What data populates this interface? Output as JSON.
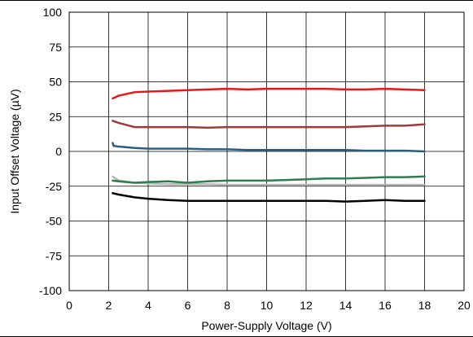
{
  "chart_data": {
    "type": "line",
    "title": "",
    "xlabel": "Power-Supply Voltage (V)",
    "ylabel": "Input Offset Voltage (µV)",
    "xlim": [
      0,
      20
    ],
    "ylim": [
      -100,
      100
    ],
    "xticks": [
      0,
      2,
      4,
      6,
      8,
      10,
      12,
      14,
      16,
      18,
      20
    ],
    "yticks": [
      100,
      75,
      50,
      25,
      0,
      -25,
      -50,
      -75,
      -100
    ],
    "grid": true,
    "legend": "none",
    "series": [
      {
        "color": "#e41a1c",
        "x": [
          2.2,
          2.5,
          3.3,
          4,
          5,
          6,
          7,
          8,
          9,
          10,
          11,
          12,
          13,
          14,
          15,
          16,
          17,
          18
        ],
        "y": [
          38,
          40,
          42.5,
          43,
          43.5,
          44,
          44.5,
          45,
          44.5,
          45,
          45,
          45,
          45,
          44.5,
          44.5,
          45,
          44.5,
          44
        ]
      },
      {
        "color": "#a0393b",
        "x": [
          2.2,
          2.5,
          3.3,
          4,
          5,
          6,
          7,
          8,
          9,
          10,
          11,
          12,
          13,
          14,
          15,
          16,
          17,
          18
        ],
        "y": [
          22,
          20.5,
          17.5,
          17.5,
          17.5,
          17.5,
          17,
          17.5,
          17.5,
          17.5,
          17.5,
          17.5,
          17.5,
          17.5,
          18,
          18.5,
          18.5,
          19.5
        ]
      },
      {
        "color": "#2b5f80",
        "x": [
          2.2,
          2.25,
          2.5,
          3.3,
          4,
          5,
          6,
          7,
          8,
          9,
          10,
          11,
          12,
          13,
          14,
          15,
          16,
          17,
          18
        ],
        "y": [
          6,
          4,
          3.5,
          2.5,
          2,
          2,
          2,
          1.5,
          1.5,
          1,
          1,
          1,
          1,
          1,
          1,
          0.5,
          0.5,
          0.5,
          0
        ]
      },
      {
        "color": "#b8b8b8",
        "x": [
          2.2,
          2.5,
          3.3,
          4,
          5,
          6,
          7,
          8,
          9,
          10,
          11,
          12,
          13,
          14,
          15,
          16,
          17,
          18
        ],
        "y": [
          -18,
          -21,
          -22.5,
          -23,
          -23.5,
          -23.5,
          -23.5,
          -24,
          -24,
          -24,
          -24,
          -24,
          -24,
          -24,
          -24,
          -24,
          -24,
          -24
        ]
      },
      {
        "color": "#2e7d4f",
        "x": [
          2.2,
          2.5,
          3.3,
          4,
          5,
          6,
          7,
          8,
          9,
          10,
          11,
          12,
          13,
          14,
          15,
          16,
          17,
          18
        ],
        "y": [
          -21,
          -21.5,
          -22.5,
          -22,
          -21.5,
          -22.5,
          -21.5,
          -21,
          -21,
          -21,
          -20.5,
          -20,
          -19.5,
          -19.5,
          -19,
          -18.5,
          -18.5,
          -18
        ]
      },
      {
        "color": "#000000",
        "x": [
          2.2,
          2.5,
          3.3,
          4,
          5,
          6,
          7,
          8,
          9,
          10,
          11,
          12,
          13,
          14,
          15,
          16,
          17,
          18
        ],
        "y": [
          -30,
          -31,
          -33,
          -34,
          -35,
          -35.5,
          -35.5,
          -35.5,
          -35.5,
          -35.5,
          -35.5,
          -35.5,
          -35.5,
          -36,
          -35.5,
          -35,
          -35.5,
          -35.5
        ]
      }
    ]
  }
}
